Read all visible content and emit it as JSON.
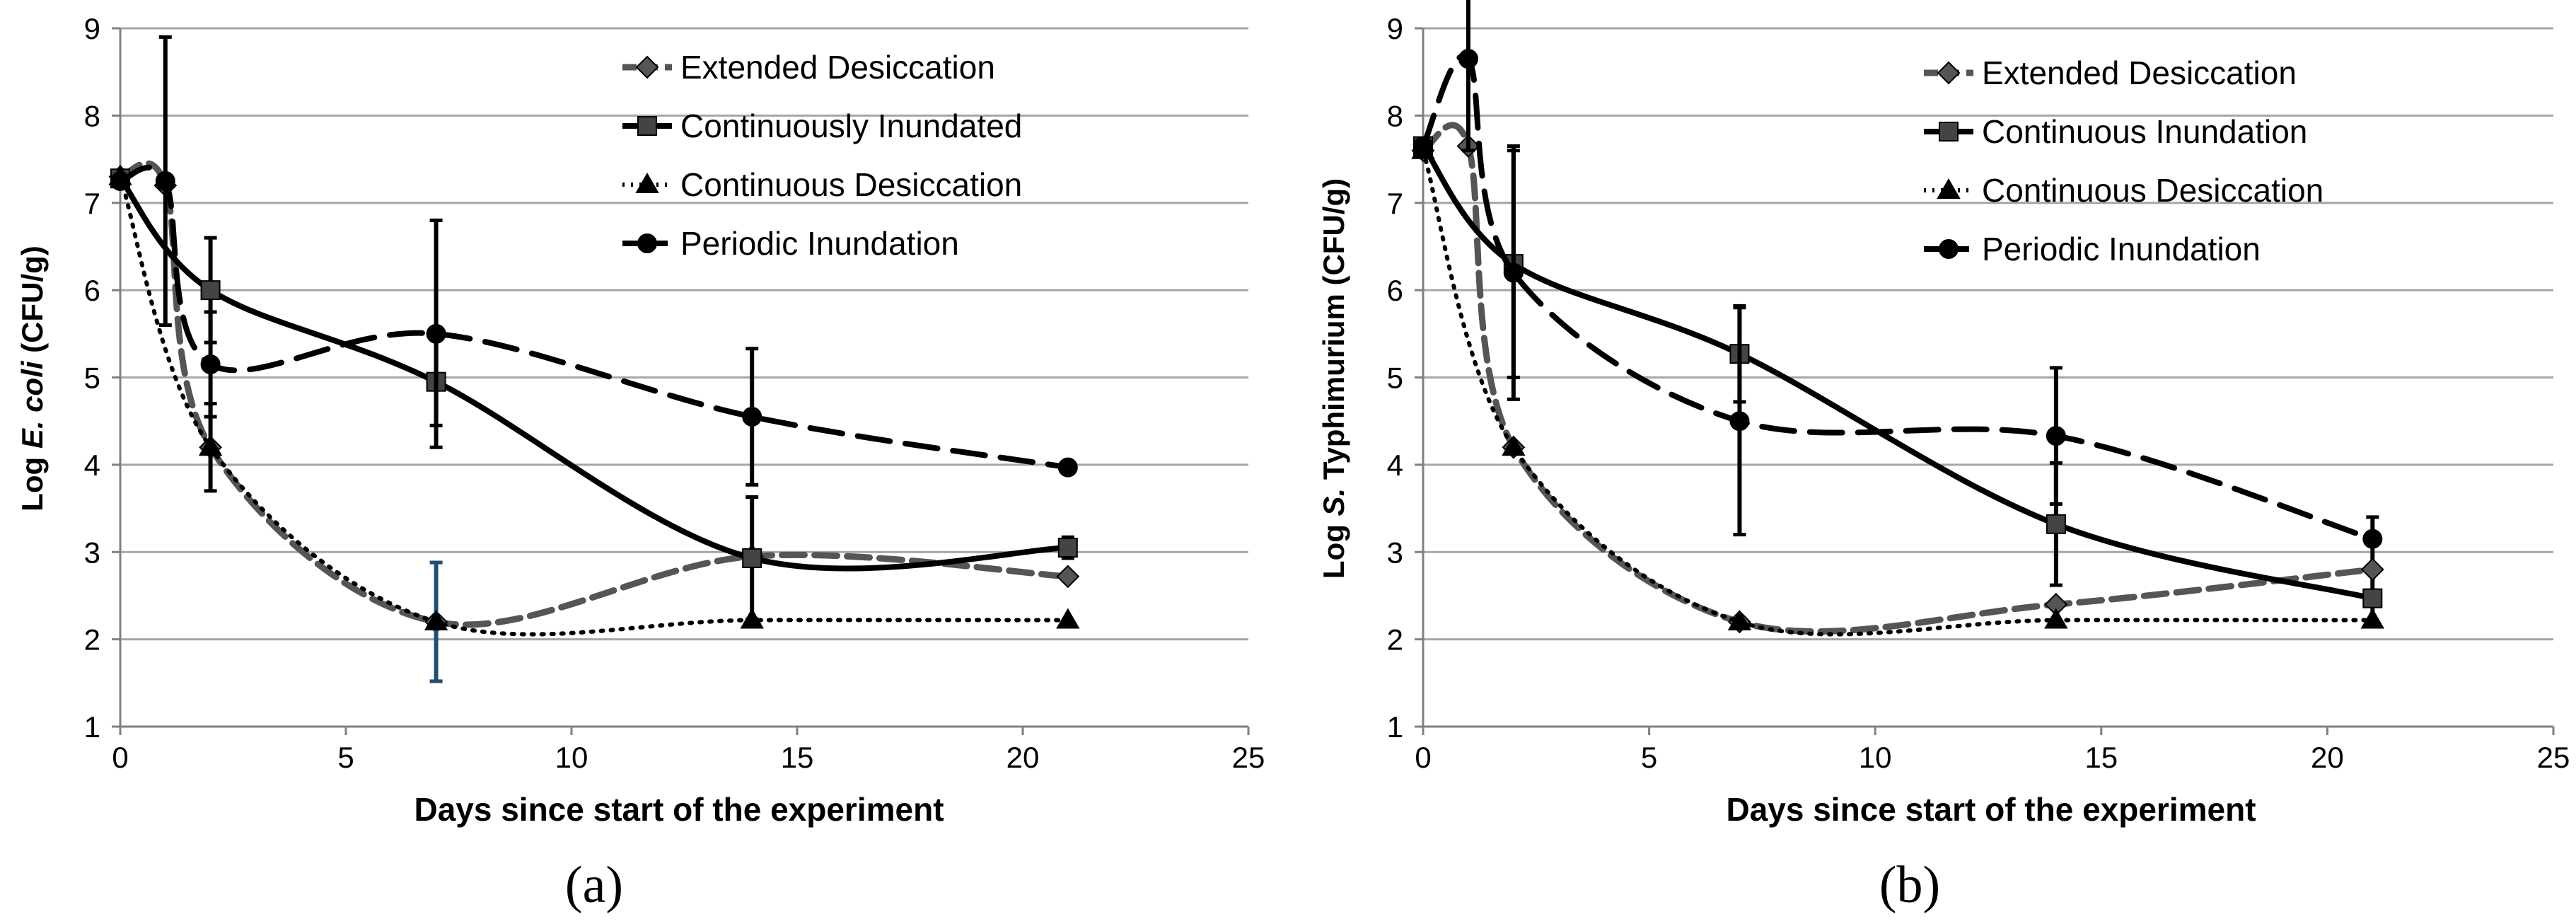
{
  "figure": {
    "panel_a_label": "(a)",
    "panel_b_label": "(b)"
  },
  "chart_data": [
    {
      "type": "line",
      "panel": "a",
      "title": "",
      "xlabel": "Days  since start of the experiment",
      "ylabel_prefix": "Log ",
      "ylabel_italic": "E. coli",
      "ylabel_suffix": " (CFU/g)",
      "xlim": [
        0,
        25
      ],
      "ylim": [
        1,
        9
      ],
      "xticks": [
        0,
        5,
        10,
        15,
        20,
        25
      ],
      "yticks": [
        1,
        2,
        3,
        4,
        5,
        6,
        7,
        8,
        9
      ],
      "grid": "horizontal",
      "legend": "top-right",
      "series": [
        {
          "name": "Extended Desiccation",
          "style": "dashed-gray",
          "marker": "diamond",
          "x": [
            0,
            1,
            2,
            7,
            14,
            21
          ],
          "y": [
            7.3,
            7.2,
            4.2,
            2.2,
            2.95,
            2.72
          ],
          "err": [
            0,
            0,
            0,
            0,
            0,
            0
          ]
        },
        {
          "name": "Continuously Inundated",
          "style": "solid",
          "marker": "square",
          "x": [
            0,
            2,
            7,
            14,
            21
          ],
          "y": [
            7.28,
            6.0,
            4.95,
            2.93,
            3.05
          ],
          "err": [
            0,
            0.6,
            0.5,
            0.7,
            0.12
          ]
        },
        {
          "name": "Continuous Desiccation",
          "style": "dotted",
          "marker": "triangle",
          "x": [
            0,
            2,
            7,
            14,
            21
          ],
          "y": [
            7.3,
            4.2,
            2.2,
            2.22,
            2.22
          ],
          "err": [
            0,
            0.5,
            0.68,
            0,
            0
          ]
        },
        {
          "name": "Periodic Inundation",
          "style": "long-dash",
          "marker": "circle",
          "x": [
            0,
            1,
            2,
            7,
            14,
            21
          ],
          "y": [
            7.25,
            7.25,
            5.15,
            5.5,
            4.55,
            3.97
          ],
          "err": [
            0,
            1.65,
            0.6,
            1.3,
            0.78,
            0
          ]
        }
      ]
    },
    {
      "type": "line",
      "panel": "b",
      "title": "",
      "xlabel": "Days since start of the experiment",
      "ylabel_prefix": "Log ",
      "ylabel_italic": "S.",
      "ylabel_suffix": " Typhimurium (CFU/g)",
      "xlim": [
        0,
        25
      ],
      "ylim": [
        1,
        9
      ],
      "xticks": [
        0,
        5,
        10,
        15,
        20,
        25
      ],
      "yticks": [
        1,
        2,
        3,
        4,
        5,
        6,
        7,
        8,
        9
      ],
      "grid": "horizontal",
      "legend": "top-right",
      "series": [
        {
          "name": "Extended Desiccation",
          "style": "dashed-gray",
          "marker": "diamond",
          "x": [
            0,
            1,
            2,
            7,
            14,
            21
          ],
          "y": [
            7.6,
            7.65,
            4.2,
            2.2,
            2.4,
            2.8
          ],
          "err": [
            0,
            0,
            0,
            0,
            0,
            0.6
          ]
        },
        {
          "name": "Continuous Inundation",
          "style": "solid",
          "marker": "square",
          "x": [
            0,
            2,
            7,
            14,
            21
          ],
          "y": [
            7.65,
            6.3,
            5.27,
            3.32,
            2.47
          ],
          "err": [
            0,
            1.3,
            0.55,
            0.7,
            0
          ]
        },
        {
          "name": "Continuous Desiccation",
          "style": "dotted",
          "marker": "triangle",
          "x": [
            0,
            2,
            7,
            14,
            21
          ],
          "y": [
            7.6,
            4.2,
            2.2,
            2.22,
            2.22
          ],
          "err": [
            0,
            0,
            0,
            0,
            0
          ]
        },
        {
          "name": "Periodic Inundation",
          "style": "long-dash",
          "marker": "circle",
          "x": [
            0,
            1,
            2,
            7,
            14,
            21
          ],
          "y": [
            7.65,
            8.65,
            6.2,
            4.5,
            4.33,
            3.15
          ],
          "err": [
            0,
            1.05,
            1.45,
            1.3,
            0.78,
            0
          ]
        }
      ]
    }
  ]
}
